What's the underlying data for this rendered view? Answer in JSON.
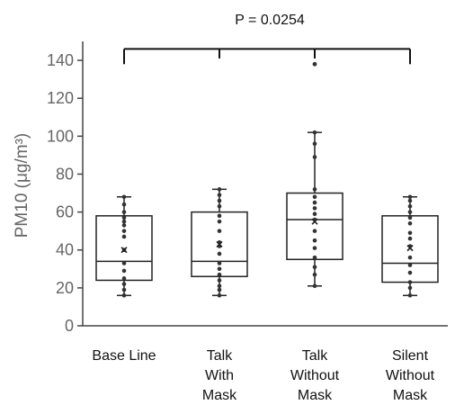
{
  "chart_data": {
    "type": "box",
    "ylabel": "PM10 (μg/m³)",
    "ylim": [
      0,
      150
    ],
    "yticks": [
      0,
      20,
      40,
      60,
      80,
      100,
      120,
      140
    ],
    "grid": false,
    "categories": [
      [
        "Base Line"
      ],
      [
        "Talk",
        "With",
        "Mask"
      ],
      [
        "Talk",
        "Without",
        "Mask"
      ],
      [
        "Silent",
        "Without",
        "Mask"
      ]
    ],
    "boxes": [
      {
        "min": 16,
        "q1": 24,
        "median": 34,
        "q3": 58,
        "max": 68,
        "mean": 40,
        "points": [
          16,
          19,
          22,
          25,
          29,
          33,
          40,
          47,
          50,
          53,
          55,
          57,
          60,
          64,
          68
        ]
      },
      {
        "min": 16,
        "q1": 26,
        "median": 34,
        "q3": 60,
        "max": 72,
        "mean": 43,
        "points": [
          16,
          19,
          21,
          24,
          27,
          30,
          33,
          38,
          42,
          44,
          50,
          55,
          58,
          63,
          66,
          69,
          72
        ]
      },
      {
        "min": 21,
        "q1": 35,
        "median": 56,
        "q3": 70,
        "max": 102,
        "mean": 55,
        "outliers": [
          138
        ],
        "points": [
          21,
          27,
          31,
          36,
          41,
          45,
          50,
          56,
          59,
          62,
          65,
          68,
          72,
          89,
          96,
          102
        ]
      },
      {
        "min": 16,
        "q1": 23,
        "median": 33,
        "q3": 58,
        "max": 68,
        "mean": 41,
        "points": [
          16,
          20,
          23,
          28,
          32,
          36,
          42,
          46,
          49,
          54,
          57,
          60,
          63,
          66,
          68
        ]
      }
    ],
    "annotation": {
      "text": "P = 0.0254",
      "span": [
        0,
        3
      ],
      "level": 146
    }
  }
}
